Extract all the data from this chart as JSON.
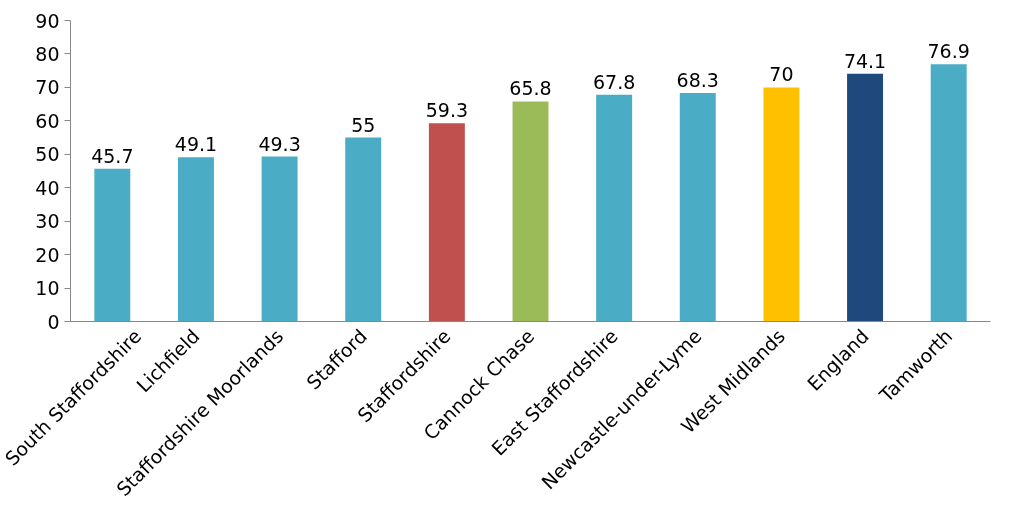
{
  "chart_data": {
    "type": "bar",
    "categories": [
      "South Staffordshire",
      "Lichfield",
      "Staffordshire Moorlands",
      "Stafford",
      "Staffordshire",
      "Cannock Chase",
      "East Staffordshire",
      "Newcastle-under-Lyme",
      "West Midlands",
      "England",
      "Tamworth"
    ],
    "values": [
      45.7,
      49.1,
      49.3,
      55,
      59.3,
      65.8,
      67.8,
      68.3,
      70,
      74.1,
      76.9
    ],
    "colors": [
      "#4bacc6",
      "#4bacc6",
      "#4bacc6",
      "#4bacc6",
      "#c0504d",
      "#9bbb59",
      "#4bacc6",
      "#4bacc6",
      "#ffc000",
      "#1f497d",
      "#4bacc6"
    ],
    "ylim": [
      0,
      90
    ],
    "yticks": [
      0,
      10,
      20,
      30,
      40,
      50,
      60,
      70,
      80,
      90
    ],
    "data_labels": true
  }
}
